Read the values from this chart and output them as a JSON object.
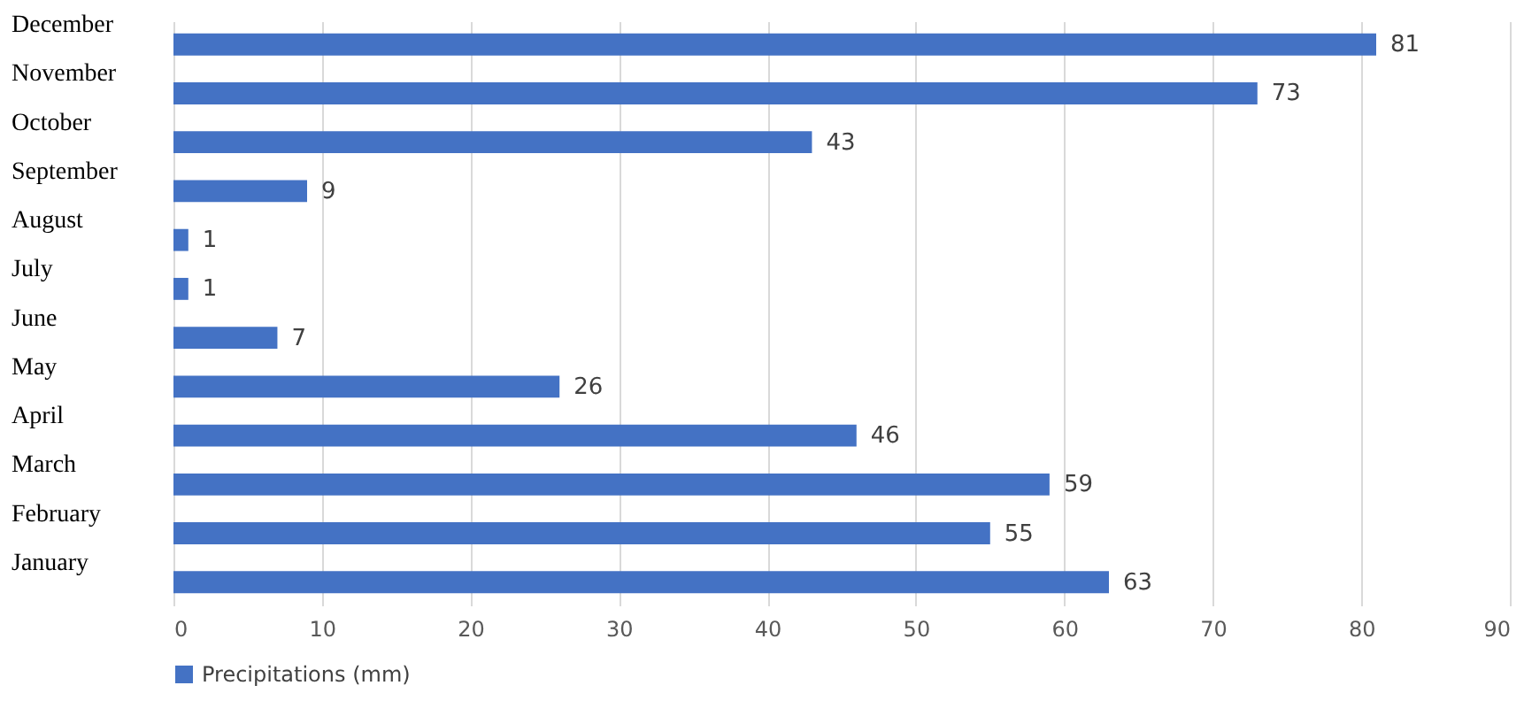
{
  "chart_data": {
    "type": "bar",
    "orientation": "horizontal",
    "categories": [
      "December",
      "November",
      "October",
      "September",
      "August",
      "July",
      "June",
      "May",
      "April",
      "March",
      "February",
      "January"
    ],
    "series": [
      {
        "name": "Precipitations (mm)",
        "color": "#4472c4",
        "values": [
          81,
          73,
          43,
          9,
          1,
          1,
          7,
          26,
          46,
          59,
          55,
          63
        ]
      }
    ],
    "xlim": [
      0,
      90
    ],
    "xticks": [
      0,
      10,
      20,
      30,
      40,
      50,
      60,
      70,
      80,
      90
    ],
    "grid": "x",
    "legend": "bottom",
    "data_labels": true
  }
}
